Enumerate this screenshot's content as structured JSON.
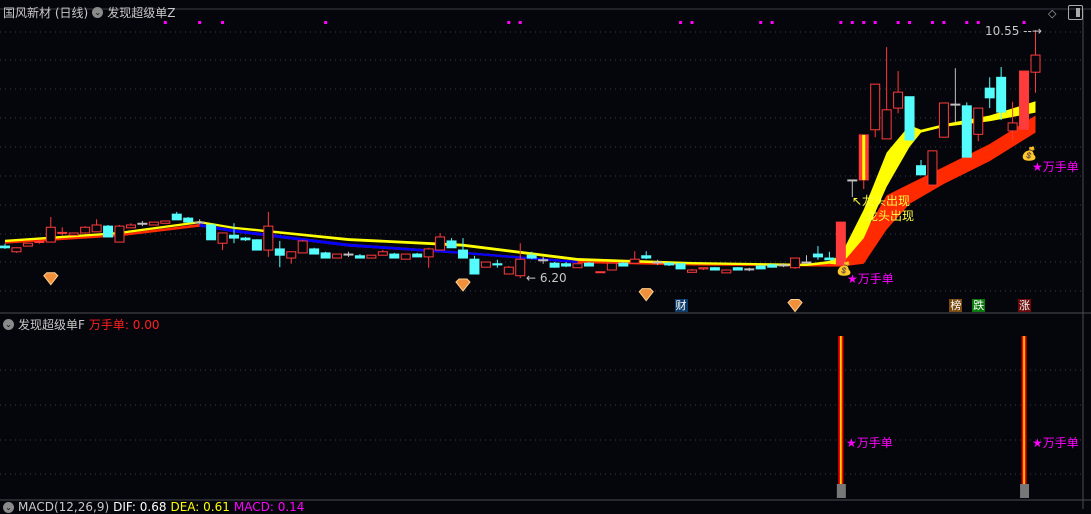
{
  "header": {
    "stock": "国风新材 (日线)",
    "indicator": "发现超级单Z"
  },
  "sub_header": {
    "indicator": "发现超级单F",
    "value_label": "万手单: 0.00"
  },
  "macd_header": {
    "name": "MACD(12,26,9)",
    "dif": "DIF: 0.68",
    "dea": "DEA: 0.61",
    "macd": "MACD: 0.14"
  },
  "colors": {
    "up": "#ff3b3b",
    "down": "#54fcfc",
    "flat": "#c0c0c0",
    "ma_fast": "#ffff00",
    "ma_slow": "#ff2a00",
    "ma_slow_falling": "#0000ff",
    "marker": "#ff00ff"
  },
  "annotations": {
    "high_label": "10.55",
    "low_label": "6.20",
    "dragon1": "↖龙头出现",
    "dragon2": "龙头出现",
    "wan1": "★万手单",
    "wan2": "★万手单",
    "sub_wan1": "★万手单",
    "sub_wan2": "★万手单"
  },
  "event_tags": [
    {
      "text": "财",
      "bg": "#0c3a6a",
      "candle": 59
    },
    {
      "text": "榜",
      "bg": "#7a4a10",
      "candle": 83
    },
    {
      "text": "跌",
      "bg": "#0a7a0a",
      "candle": 85
    },
    {
      "text": "涨",
      "bg": "#6a0a0a",
      "candle": 89
    }
  ],
  "chart_data": {
    "type": "candlestick",
    "price_high": 10.55,
    "price_low": 6.2,
    "candles": [
      [
        6.76,
        6.8,
        6.71,
        6.73
      ],
      [
        6.66,
        6.74,
        6.64,
        6.73
      ],
      [
        6.76,
        6.81,
        6.76,
        6.81
      ],
      [
        6.83,
        6.87,
        6.8,
        6.84
      ],
      [
        6.83,
        7.27,
        6.83,
        7.09
      ],
      [
        6.99,
        7.09,
        6.94,
        7.0
      ],
      [
        6.95,
        6.99,
        6.95,
        6.99
      ],
      [
        6.99,
        7.11,
        6.99,
        7.09
      ],
      [
        7.01,
        7.23,
        7.01,
        7.13
      ],
      [
        7.11,
        7.13,
        6.92,
        6.92
      ],
      [
        6.83,
        7.13,
        6.83,
        7.11
      ],
      [
        7.08,
        7.16,
        7.08,
        7.13
      ],
      [
        7.16,
        7.2,
        7.11,
        7.16
      ],
      [
        7.13,
        7.18,
        7.13,
        7.18
      ],
      [
        7.16,
        7.2,
        7.16,
        7.2
      ],
      [
        7.32,
        7.36,
        7.22,
        7.22
      ],
      [
        7.25,
        7.27,
        7.18,
        7.18
      ],
      [
        7.18,
        7.23,
        7.15,
        7.18
      ],
      [
        7.13,
        7.16,
        6.87,
        6.87
      ],
      [
        6.81,
        7.0,
        6.69,
        6.99
      ],
      [
        6.95,
        7.16,
        6.81,
        6.9
      ],
      [
        6.9,
        6.92,
        6.85,
        6.87
      ],
      [
        6.87,
        6.88,
        6.69,
        6.69
      ],
      [
        6.69,
        7.36,
        6.57,
        7.11
      ],
      [
        6.71,
        6.85,
        6.39,
        6.6
      ],
      [
        6.55,
        6.66,
        6.45,
        6.66
      ],
      [
        6.64,
        6.87,
        6.64,
        6.85
      ],
      [
        6.71,
        6.73,
        6.62,
        6.62
      ],
      [
        6.64,
        6.66,
        6.55,
        6.55
      ],
      [
        6.55,
        6.62,
        6.55,
        6.62
      ],
      [
        6.62,
        6.66,
        6.57,
        6.62
      ],
      [
        6.59,
        6.62,
        6.55,
        6.55
      ],
      [
        6.55,
        6.6,
        6.55,
        6.6
      ],
      [
        6.6,
        6.69,
        6.6,
        6.66
      ],
      [
        6.62,
        6.64,
        6.55,
        6.55
      ],
      [
        6.53,
        6.62,
        6.53,
        6.62
      ],
      [
        6.62,
        6.64,
        6.57,
        6.57
      ],
      [
        6.57,
        6.73,
        6.38,
        6.71
      ],
      [
        6.69,
        6.99,
        6.69,
        6.92
      ],
      [
        6.85,
        6.9,
        6.73,
        6.73
      ],
      [
        6.69,
        6.9,
        6.55,
        6.55
      ],
      [
        6.53,
        6.59,
        6.27,
        6.27
      ],
      [
        6.39,
        6.48,
        6.39,
        6.48
      ],
      [
        6.45,
        6.52,
        6.38,
        6.43
      ],
      [
        6.27,
        6.41,
        6.27,
        6.39
      ],
      [
        6.24,
        6.81,
        6.2,
        6.53
      ],
      [
        6.6,
        6.66,
        6.53,
        6.55
      ],
      [
        6.52,
        6.57,
        6.45,
        6.52
      ],
      [
        6.46,
        6.48,
        6.38,
        6.39
      ],
      [
        6.45,
        6.48,
        6.39,
        6.41
      ],
      [
        6.38,
        6.45,
        6.38,
        6.45
      ],
      [
        6.46,
        6.48,
        6.41,
        6.41
      ],
      [
        6.3,
        6.31,
        6.29,
        6.31
      ],
      [
        6.34,
        6.48,
        6.34,
        6.46
      ],
      [
        6.46,
        6.48,
        6.41,
        6.41
      ],
      [
        6.46,
        6.67,
        6.46,
        6.53
      ],
      [
        6.59,
        6.67,
        6.53,
        6.55
      ],
      [
        6.48,
        6.52,
        6.43,
        6.48
      ],
      [
        6.46,
        6.48,
        6.41,
        6.43
      ],
      [
        6.45,
        6.46,
        6.36,
        6.36
      ],
      [
        6.3,
        6.36,
        6.3,
        6.34
      ],
      [
        6.36,
        6.38,
        6.34,
        6.38
      ],
      [
        6.38,
        6.39,
        6.34,
        6.34
      ],
      [
        6.29,
        6.34,
        6.29,
        6.34
      ],
      [
        6.38,
        6.39,
        6.34,
        6.34
      ],
      [
        6.36,
        6.38,
        6.32,
        6.36
      ],
      [
        6.41,
        6.43,
        6.36,
        6.36
      ],
      [
        6.43,
        6.45,
        6.38,
        6.39
      ],
      [
        6.43,
        6.46,
        6.39,
        6.43
      ],
      [
        6.38,
        6.55,
        6.36,
        6.55
      ],
      [
        6.48,
        6.6,
        6.45,
        6.48
      ],
      [
        6.62,
        6.76,
        6.52,
        6.57
      ],
      [
        6.55,
        6.66,
        6.52,
        6.52
      ],
      [
        6.43,
        7.18,
        6.43,
        7.18
      ],
      [
        7.92,
        7.92,
        7.62,
        7.92
      ],
      [
        7.92,
        8.71,
        7.76,
        8.71
      ],
      [
        8.8,
        9.6,
        8.67,
        9.6
      ],
      [
        8.64,
        10.25,
        8.64,
        9.15
      ],
      [
        9.18,
        9.83,
        9.09,
        9.46
      ],
      [
        9.38,
        9.38,
        8.62,
        8.62
      ],
      [
        8.17,
        8.27,
        8.01,
        8.01
      ],
      [
        7.83,
        8.43,
        7.83,
        8.43
      ],
      [
        8.67,
        9.27,
        8.67,
        9.27
      ],
      [
        9.25,
        9.88,
        8.92,
        9.25
      ],
      [
        9.22,
        9.28,
        8.32,
        8.32
      ],
      [
        8.72,
        9.18,
        8.6,
        9.18
      ],
      [
        9.53,
        9.72,
        9.18,
        9.36
      ],
      [
        9.72,
        9.9,
        8.97,
        9.11
      ],
      [
        8.78,
        9.29,
        8.62,
        8.92
      ],
      [
        8.81,
        9.83,
        8.81,
        9.83
      ],
      [
        9.81,
        10.55,
        9.45,
        10.11
      ]
    ],
    "solid_up": [
      52,
      73,
      75,
      89
    ],
    "ma_fast_band": [
      [
        0,
        6.87,
        6.83
      ],
      [
        10,
        7.01,
        6.97
      ],
      [
        17,
        7.2,
        7.16
      ],
      [
        20,
        7.1,
        7.06
      ],
      [
        30,
        6.9,
        6.85
      ],
      [
        40,
        6.8,
        6.75
      ],
      [
        50,
        6.55,
        6.5
      ],
      [
        60,
        6.48,
        6.44
      ],
      [
        70,
        6.45,
        6.41
      ],
      [
        72,
        6.5,
        6.45
      ],
      [
        73,
        6.6,
        6.43
      ],
      [
        75,
        7.4,
        6.9
      ],
      [
        77,
        8.4,
        7.8
      ],
      [
        79,
        8.88,
        8.5
      ],
      [
        80,
        8.8,
        8.75
      ],
      [
        82,
        8.9,
        8.85
      ],
      [
        86,
        9.05,
        8.95
      ],
      [
        90,
        9.3,
        9.1
      ]
    ],
    "ma_slow_band": [
      [
        0,
        6.84,
        6.8
      ],
      [
        10,
        6.97,
        6.93
      ],
      [
        17,
        7.15,
        7.1
      ],
      [
        20,
        7.05,
        7.0
      ],
      [
        30,
        6.8,
        6.75
      ],
      [
        40,
        6.66,
        6.62
      ],
      [
        50,
        6.5,
        6.46
      ],
      [
        60,
        6.45,
        6.42
      ],
      [
        72,
        6.45,
        6.4
      ],
      [
        73,
        6.5,
        6.4
      ],
      [
        75,
        6.95,
        6.45
      ],
      [
        77,
        7.65,
        7.05
      ],
      [
        79,
        7.85,
        7.5
      ],
      [
        82,
        8.15,
        7.85
      ],
      [
        86,
        8.55,
        8.25
      ],
      [
        90,
        9.05,
        8.75
      ]
    ],
    "ma_slow_falling_range": [
      17,
      50
    ],
    "top_markers": [
      14,
      17,
      19,
      28,
      44,
      45,
      59,
      60,
      66,
      67,
      73,
      74,
      75,
      76,
      78,
      79,
      81,
      82,
      84,
      85,
      89
    ],
    "diamonds": [
      [
        4,
        6.17
      ],
      [
        40,
        6.06
      ],
      [
        56,
        5.89
      ],
      [
        69,
        5.7
      ]
    ],
    "volume_signal_bars": [
      73,
      89
    ]
  }
}
